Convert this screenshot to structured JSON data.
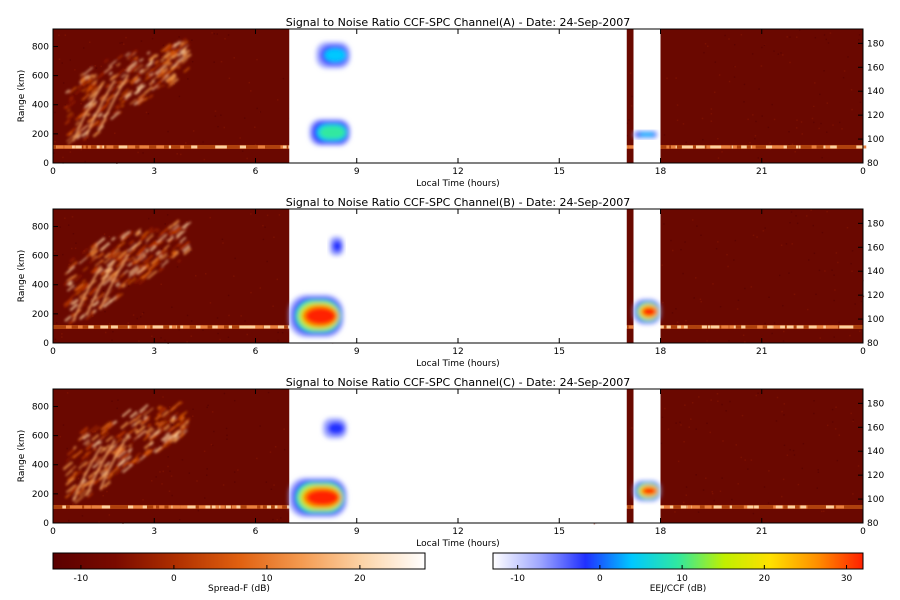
{
  "chart_data": [
    {
      "type": "heatmap",
      "title": "Signal to Noise Ratio CCF-SPC Channel(A) - Date: 24-Sep-2007",
      "xlabel": "Local Time (hours)",
      "ylabel": "Range (km)",
      "x_ticks": [
        "0",
        "3",
        "6",
        "9",
        "12",
        "15",
        "18",
        "21",
        "0"
      ],
      "y_ticks": [
        "0",
        "200",
        "400",
        "600",
        "800"
      ],
      "y2_ticks": [
        "80",
        "100",
        "120",
        "140",
        "160",
        "180"
      ],
      "xlim": [
        0,
        24
      ],
      "ylim": [
        0,
        920
      ],
      "y2lim": [
        80,
        192
      ],
      "spreadF_band_range_km": 110,
      "spreadF_plume": {
        "start_hour": 0.3,
        "end_hour": 3.9,
        "max_range_km": 880
      },
      "blank_intervals_hours": [
        [
          7.0,
          17.0
        ],
        [
          17.2,
          18.0
        ]
      ],
      "eej_echoes": [
        {
          "start_hour": 7.6,
          "end_hour": 8.8,
          "range_km": [
            120,
            300
          ],
          "max_snr_db": 12
        },
        {
          "start_hour": 7.8,
          "end_hour": 8.8,
          "range_km": [
            650,
            830
          ],
          "max_snr_db": 6
        },
        {
          "start_hour": 17.2,
          "end_hour": 17.9,
          "range_km": [
            170,
            220
          ],
          "max_snr_db": 6
        }
      ]
    },
    {
      "type": "heatmap",
      "title": "Signal to Noise Ratio CCF-SPC Channel(B) - Date: 24-Sep-2007",
      "xlabel": "Local Time (hours)",
      "ylabel": "Range (km)",
      "x_ticks": [
        "0",
        "3",
        "6",
        "9",
        "12",
        "15",
        "18",
        "21",
        "0"
      ],
      "y_ticks": [
        "0",
        "200",
        "400",
        "600",
        "800"
      ],
      "y2_ticks": [
        "80",
        "100",
        "120",
        "140",
        "160",
        "180"
      ],
      "xlim": [
        0,
        24
      ],
      "ylim": [
        0,
        920
      ],
      "y2lim": [
        80,
        192
      ],
      "spreadF_band_range_km": 110,
      "spreadF_plume": {
        "start_hour": 0.3,
        "end_hour": 3.9,
        "max_range_km": 880
      },
      "blank_intervals_hours": [
        [
          7.0,
          17.0
        ],
        [
          17.2,
          18.0
        ]
      ],
      "eej_echoes": [
        {
          "start_hour": 7.0,
          "end_hour": 8.6,
          "range_km": [
            40,
            330
          ],
          "max_snr_db": 32
        },
        {
          "start_hour": 8.2,
          "end_hour": 8.6,
          "range_km": [
            600,
            730
          ],
          "max_snr_db": 0
        },
        {
          "start_hour": 17.2,
          "end_hour": 18.0,
          "range_km": [
            130,
            300
          ],
          "max_snr_db": 30
        }
      ]
    },
    {
      "type": "heatmap",
      "title": "Signal to Noise Ratio CCF-SPC Channel(C) - Date: 24-Sep-2007",
      "xlabel": "Local Time (hours)",
      "ylabel": "Range (km)",
      "x_ticks": [
        "0",
        "3",
        "6",
        "9",
        "12",
        "15",
        "18",
        "21",
        "0"
      ],
      "y_ticks": [
        "0",
        "200",
        "400",
        "600",
        "800"
      ],
      "y2_ticks": [
        "80",
        "100",
        "120",
        "140",
        "160",
        "180"
      ],
      "xlim": [
        0,
        24
      ],
      "ylim": [
        0,
        920
      ],
      "y2lim": [
        80,
        192
      ],
      "spreadF_band_range_km": 110,
      "spreadF_plume": {
        "start_hour": 0.3,
        "end_hour": 3.8,
        "max_range_km": 880
      },
      "blank_intervals_hours": [
        [
          7.0,
          17.0
        ],
        [
          17.2,
          18.0
        ]
      ],
      "eej_echoes": [
        {
          "start_hour": 7.0,
          "end_hour": 8.7,
          "range_km": [
            40,
            310
          ],
          "max_snr_db": 32
        },
        {
          "start_hour": 8.0,
          "end_hour": 8.7,
          "range_km": [
            580,
            720
          ],
          "max_snr_db": 0
        },
        {
          "start_hour": 17.2,
          "end_hour": 18.0,
          "range_km": [
            150,
            290
          ],
          "max_snr_db": 30
        }
      ]
    }
  ],
  "colorbars": [
    {
      "label": "Spread-F (dB)",
      "ticks": [
        "-10",
        "0",
        "10",
        "20"
      ],
      "range_db": [
        -13,
        27
      ],
      "colors": [
        "#5a0000",
        "#7a0a00",
        "#b03000",
        "#e06010",
        "#f49a50",
        "#fcd4a8",
        "#ffffff"
      ]
    },
    {
      "label": "EEJ/CCF (dB)",
      "ticks": [
        "-10",
        "0",
        "10",
        "20",
        "30"
      ],
      "range_db": [
        -13,
        32
      ],
      "colors": [
        "#ffffff",
        "#a0a8ff",
        "#2030ff",
        "#00c8ff",
        "#30e8a0",
        "#c0f000",
        "#ffe000",
        "#ff9000",
        "#ff2000"
      ]
    }
  ]
}
